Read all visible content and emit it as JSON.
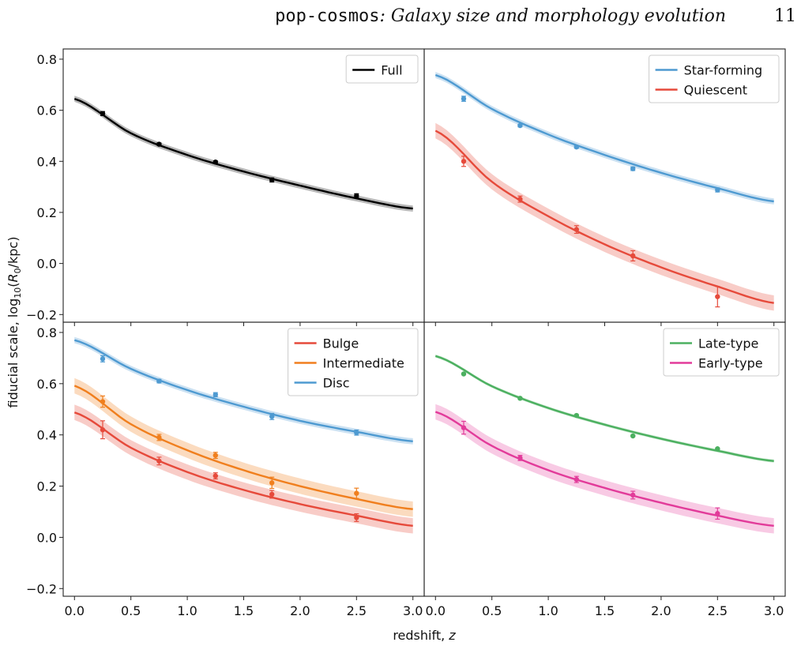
{
  "header": {
    "title_mono": "pop-cosmos",
    "title_rest": ": Galaxy size and morphology evolution",
    "page_number": "11"
  },
  "shared_axes": {
    "xlabel": "redshift, z",
    "ylabel": "fiducial scale, log10(R0/kpc)",
    "xlim": [
      -0.1,
      3.1
    ],
    "ylim": [
      -0.23,
      0.84
    ],
    "xticks": [
      0.0,
      0.5,
      1.0,
      1.5,
      2.0,
      2.5,
      3.0
    ],
    "xtick_labels": [
      "0.0",
      "0.5",
      "1.0",
      "1.5",
      "2.0",
      "2.5",
      "3.0"
    ],
    "yticks": [
      -0.2,
      0.0,
      0.2,
      0.4,
      0.6,
      0.8
    ],
    "ytick_labels": [
      "−0.2",
      "0.0",
      "0.2",
      "0.4",
      "0.6",
      "0.8"
    ]
  },
  "chart_data": [
    {
      "type": "line",
      "panel": "top-left",
      "legend_position": "top-right",
      "series": [
        {
          "name": "Full",
          "color": "#000000",
          "band_color": "#888888",
          "curve_z": [
            0,
            0.5,
            1.0,
            1.5,
            2.0,
            2.5,
            3.0
          ],
          "curve_y": [
            0.645,
            0.51,
            0.425,
            0.36,
            0.305,
            0.255,
            0.215
          ],
          "band_halfwidth": 0.012,
          "points_z": [
            0.25,
            0.75,
            1.25,
            1.75,
            2.5
          ],
          "points_y": [
            0.587,
            0.467,
            0.397,
            0.327,
            0.265
          ],
          "points_err": [
            0.008,
            0.005,
            0.005,
            0.008,
            0.008
          ]
        }
      ]
    },
    {
      "type": "line",
      "panel": "top-right",
      "legend_position": "top-right",
      "series": [
        {
          "name": "Star-forming",
          "color": "#4e9ad1",
          "band_color": "#a8cdea",
          "curve_z": [
            0,
            0.5,
            1.0,
            1.5,
            2.0,
            2.5,
            3.0
          ],
          "curve_y": [
            0.738,
            0.605,
            0.505,
            0.425,
            0.355,
            0.295,
            0.243
          ],
          "band_halfwidth": 0.012,
          "points_z": [
            0.25,
            0.75,
            1.25,
            1.75,
            2.5
          ],
          "points_y": [
            0.645,
            0.54,
            0.456,
            0.371,
            0.288
          ],
          "points_err": [
            0.01,
            0.005,
            0.005,
            0.007,
            0.008
          ]
        },
        {
          "name": "Quiescent",
          "color": "#e64a3b",
          "band_color": "#f4aaa2",
          "curve_z": [
            0,
            0.5,
            1.0,
            1.5,
            2.0,
            2.5,
            3.0
          ],
          "curve_y": [
            0.52,
            0.32,
            0.185,
            0.075,
            -0.015,
            -0.09,
            -0.155
          ],
          "band_halfwidth": 0.03,
          "points_z": [
            0.25,
            0.75,
            1.25,
            1.75,
            2.5
          ],
          "points_y": [
            0.4,
            0.252,
            0.133,
            0.03,
            -0.13
          ],
          "points_err": [
            0.02,
            0.012,
            0.015,
            0.02,
            0.04
          ]
        }
      ]
    },
    {
      "type": "line",
      "panel": "bottom-left",
      "legend_position": "top-right",
      "series": [
        {
          "name": "Bulge",
          "color": "#e64a3b",
          "band_color": "#f4aaa2",
          "curve_z": [
            0,
            0.5,
            1.0,
            1.5,
            2.0,
            2.5,
            3.0
          ],
          "curve_y": [
            0.488,
            0.35,
            0.255,
            0.185,
            0.13,
            0.085,
            0.045
          ],
          "band_halfwidth": 0.03,
          "points_z": [
            0.25,
            0.75,
            1.25,
            1.75,
            2.5
          ],
          "points_y": [
            0.42,
            0.298,
            0.24,
            0.168,
            0.077
          ],
          "points_err": [
            0.035,
            0.015,
            0.012,
            0.015,
            0.015
          ]
        },
        {
          "name": "Intermediate",
          "color": "#f07f1e",
          "band_color": "#f8c394",
          "curve_z": [
            0,
            0.5,
            1.0,
            1.5,
            2.0,
            2.5,
            3.0
          ],
          "curve_y": [
            0.592,
            0.442,
            0.34,
            0.262,
            0.2,
            0.15,
            0.11
          ],
          "band_halfwidth": 0.03,
          "points_z": [
            0.25,
            0.75,
            1.25,
            1.75,
            2.5
          ],
          "points_y": [
            0.53,
            0.39,
            0.32,
            0.213,
            0.172
          ],
          "points_err": [
            0.022,
            0.012,
            0.012,
            0.022,
            0.02
          ]
        },
        {
          "name": "Disc",
          "color": "#4e9ad1",
          "band_color": "#a8cdea",
          "curve_z": [
            0,
            0.5,
            1.0,
            1.5,
            2.0,
            2.5,
            3.0
          ],
          "curve_y": [
            0.77,
            0.658,
            0.575,
            0.51,
            0.455,
            0.412,
            0.375
          ],
          "band_halfwidth": 0.012,
          "points_z": [
            0.25,
            0.75,
            1.25,
            1.75,
            2.5
          ],
          "points_y": [
            0.697,
            0.61,
            0.557,
            0.472,
            0.409
          ],
          "points_err": [
            0.012,
            0.007,
            0.008,
            0.012,
            0.01
          ]
        }
      ]
    },
    {
      "type": "line",
      "panel": "bottom-right",
      "legend_position": "top-right",
      "series": [
        {
          "name": "Late-type",
          "color": "#4cb060",
          "band_color": "#a6d8b0",
          "curve_z": [
            0,
            0.5,
            1.0,
            1.5,
            2.0,
            2.5,
            3.0
          ],
          "curve_y": [
            0.708,
            0.59,
            0.505,
            0.44,
            0.385,
            0.338,
            0.298
          ],
          "band_halfwidth": 0.006,
          "points_z": [
            0.25,
            0.75,
            1.25,
            1.75,
            2.5
          ],
          "points_y": [
            0.638,
            0.543,
            0.476,
            0.396,
            0.346
          ],
          "points_err": [
            0.003,
            0.003,
            0.003,
            0.003,
            0.003
          ]
        },
        {
          "name": "Early-type",
          "color": "#e23b9a",
          "band_color": "#f3a7d2",
          "curve_z": [
            0,
            0.5,
            1.0,
            1.5,
            2.0,
            2.5,
            3.0
          ],
          "curve_y": [
            0.49,
            0.357,
            0.262,
            0.193,
            0.135,
            0.085,
            0.045
          ],
          "band_halfwidth": 0.03,
          "points_z": [
            0.25,
            0.75,
            1.25,
            1.75,
            2.5
          ],
          "points_y": [
            0.428,
            0.31,
            0.226,
            0.165,
            0.093
          ],
          "points_err": [
            0.025,
            0.01,
            0.012,
            0.015,
            0.022
          ]
        }
      ]
    }
  ]
}
